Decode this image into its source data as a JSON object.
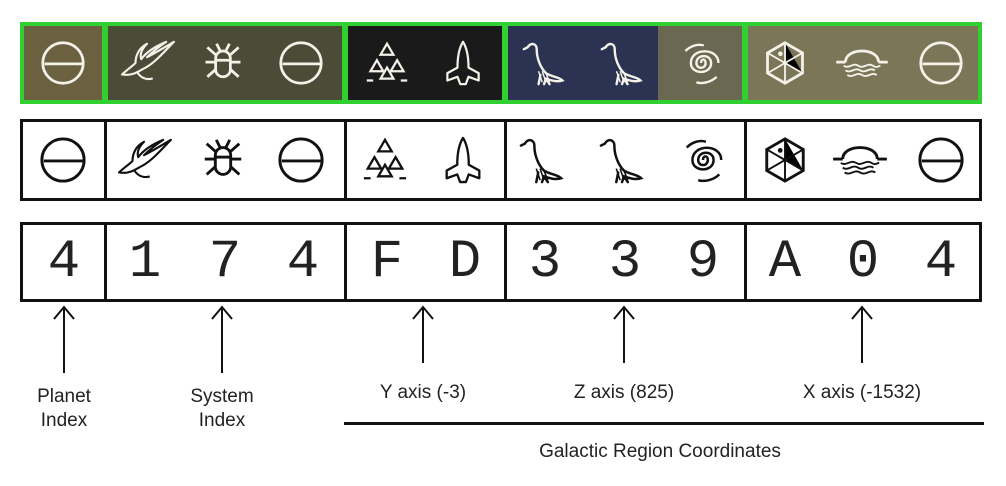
{
  "colors": {
    "photo_border": "#2fd02f",
    "box_border": "#111111",
    "text": "#222222",
    "glyph_fill": "#111111",
    "photo_glyph": "#ffffff"
  },
  "groups": [
    {
      "key": "planet",
      "glyphs": [
        "sun-eclipse-icon"
      ],
      "digits": [
        "4"
      ],
      "label": "Planet\nIndex"
    },
    {
      "key": "system",
      "glyphs": [
        "bird-icon",
        "bug-icon",
        "sun-eclipse-icon"
      ],
      "digits": [
        "1",
        "7",
        "4"
      ],
      "label": "System\nIndex"
    },
    {
      "key": "y",
      "glyphs": [
        "triangles-icon",
        "rocket-icon"
      ],
      "digits": [
        "F",
        "D"
      ],
      "label": "Y axis (-3)"
    },
    {
      "key": "z",
      "glyphs": [
        "dinosaur-icon",
        "dinosaur-icon",
        "spiral-icon"
      ],
      "digits": [
        "3",
        "3",
        "9"
      ],
      "label": "Z axis (825)"
    },
    {
      "key": "x",
      "glyphs": [
        "hexagon-icon",
        "sunset-waves-icon",
        "sun-eclipse-icon"
      ],
      "digits": [
        "A",
        "0",
        "4"
      ],
      "label": "X axis (-1532)"
    }
  ],
  "labels": {
    "planet_line1": "Planet",
    "planet_line2": "Index",
    "system_line1": "System",
    "system_line2": "Index",
    "y_axis": "Y axis (-3)",
    "z_axis": "Z axis (825)",
    "x_axis": "X axis (-1532)",
    "region": "Galactic Region Coordinates"
  },
  "digits": {
    "d0": "4",
    "d1": "1",
    "d2": "7",
    "d3": "4",
    "d4": "F",
    "d5": "D",
    "d6": "3",
    "d7": "3",
    "d8": "9",
    "d9": "A",
    "d10": "0",
    "d11": "4"
  }
}
